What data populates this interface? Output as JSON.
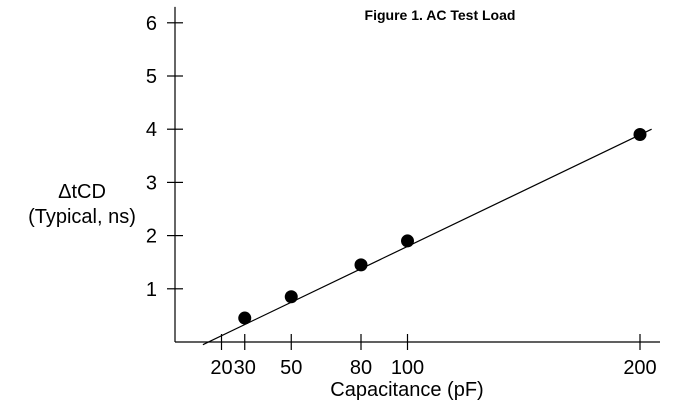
{
  "chart_data": {
    "type": "scatter",
    "title": "Figure 1. AC Test Load",
    "xlabel": "Capacitance (pF)",
    "ylabel": "ΔtCD",
    "ylabel_sub": "(Typical, ns)",
    "x_ticks": [
      20,
      30,
      50,
      80,
      100,
      200
    ],
    "y_ticks": [
      1,
      2,
      3,
      4,
      5,
      6
    ],
    "xlim": [
      0,
      205
    ],
    "ylim": [
      0,
      6.3
    ],
    "grid": false,
    "series": [
      {
        "x": [
          30,
          50,
          80,
          100,
          200
        ],
        "y": [
          0.45,
          0.85,
          1.45,
          1.9,
          3.9
        ]
      }
    ],
    "trend_line": {
      "x": [
        12,
        205
      ],
      "y": [
        -0.05,
        4.0
      ]
    },
    "colors": {
      "axis": "#000000",
      "marker": "#000000",
      "line": "#000000"
    }
  }
}
